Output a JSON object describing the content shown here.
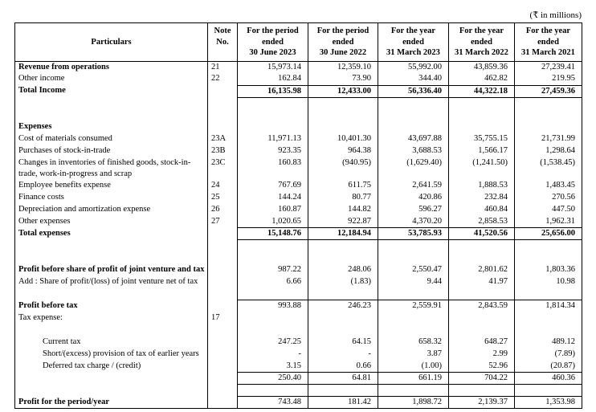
{
  "page": {
    "currency_note": "(₹ in millions)"
  },
  "colors": {
    "text": "#000000",
    "background": "#ffffff",
    "border": "#000000"
  },
  "table": {
    "columns": [
      {
        "id": "particulars",
        "lines": [
          "Particulars"
        ]
      },
      {
        "id": "note",
        "lines": [
          "Note",
          "No."
        ]
      },
      {
        "id": "period-jun-2023",
        "lines": [
          "For the period",
          "ended",
          "30 June 2023"
        ]
      },
      {
        "id": "period-jun-2022",
        "lines": [
          "For the period",
          "ended",
          "30 June 2022"
        ]
      },
      {
        "id": "year-mar-2023",
        "lines": [
          "For the year",
          "ended",
          "31 March 2023"
        ]
      },
      {
        "id": "year-mar-2022",
        "lines": [
          "For the year",
          "ended",
          "31 March 2022"
        ]
      },
      {
        "id": "year-mar-2021",
        "lines": [
          "For the year",
          "ended",
          "31 March 2021"
        ]
      }
    ],
    "rows": [
      {
        "label": "Revenue from operations",
        "note": "21",
        "values": [
          "15,973.14",
          "12,359.10",
          "55,992.00",
          "43,859.36",
          "27,239.41"
        ],
        "bold": true
      },
      {
        "label": "Other income",
        "note": "22",
        "values": [
          "162.84",
          "73.90",
          "344.40",
          "462.82",
          "219.95"
        ]
      },
      {
        "label": "Total Income",
        "values": [
          "16,135.98",
          "12,433.00",
          "56,336.40",
          "44,322.18",
          "27,459.36"
        ],
        "bold": true,
        "vbold": true,
        "bt": true,
        "bb": true
      },
      {
        "blank": true
      },
      {
        "blank": true
      },
      {
        "label": "Expenses",
        "bold": true
      },
      {
        "label": "Cost of materials consumed",
        "note": "23A",
        "values": [
          "11,971.13",
          "10,401.30",
          "43,697.88",
          "35,755.15",
          "21,731.99"
        ]
      },
      {
        "label": "Purchases of stock-in-trade",
        "note": "23B",
        "values": [
          "923.35",
          "964.38",
          "3,688.53",
          "1,566.17",
          "1,298.64"
        ]
      },
      {
        "label": "Changes in inventories of finished goods, stock-in-trade, work-in-progress and scrap",
        "note": "23C",
        "values": [
          "160.83",
          "(940.95)",
          "(1,629.40)",
          "(1,241.50)",
          "(1,538.45)"
        ],
        "wrap": true
      },
      {
        "label": "Employee benefits expense",
        "note": "24",
        "values": [
          "767.69",
          "611.75",
          "2,641.59",
          "1,888.53",
          "1,483.45"
        ]
      },
      {
        "label": "Finance costs",
        "note": "25",
        "values": [
          "144.24",
          "80.77",
          "420.86",
          "232.84",
          "270.56"
        ]
      },
      {
        "label": "Depreciation and amortization expense",
        "note": "26",
        "values": [
          "160.87",
          "144.82",
          "596.27",
          "460.84",
          "447.50"
        ]
      },
      {
        "label": "Other expenses",
        "note": "27",
        "values": [
          "1,020.65",
          "922.87",
          "4,370.20",
          "2,858.53",
          "1,962.31"
        ]
      },
      {
        "label": "Total expenses",
        "values": [
          "15,148.76",
          "12,184.94",
          "53,785.93",
          "41,520.56",
          "25,656.00"
        ],
        "bold": true,
        "vbold": true,
        "bt": true,
        "bb": true
      },
      {
        "blank": true
      },
      {
        "blank": true
      },
      {
        "label": "Profit before share of profit of joint venture and tax",
        "values": [
          "987.22",
          "248.06",
          "2,550.47",
          "2,801.62",
          "1,803.36"
        ],
        "bold": true
      },
      {
        "label": "Add : Share of profit/(loss) of joint venture net of tax",
        "values": [
          "6.66",
          "(1.83)",
          "9.44",
          "41.97",
          "10.98"
        ]
      },
      {
        "blank": true
      },
      {
        "label": "Profit before tax",
        "values": [
          "993.88",
          "246.23",
          "2,559.91",
          "2,843.59",
          "1,814.34"
        ],
        "bold": true,
        "bt": true
      },
      {
        "label": "Tax expense:",
        "note": "17"
      },
      {
        "blank": true
      },
      {
        "label": "Current tax",
        "indent": 1,
        "values": [
          "247.25",
          "64.15",
          "658.32",
          "648.27",
          "489.12"
        ]
      },
      {
        "label": "Short/(excess) provision of tax of earlier years",
        "indent": 1,
        "values": [
          "-",
          "-",
          "3.87",
          "2.99",
          "(7.89)"
        ]
      },
      {
        "label": "Deferred tax charge / (credit)",
        "indent": 1,
        "values": [
          "3.15",
          "0.66",
          "(1.00)",
          "52.96",
          "(20.87)"
        ]
      },
      {
        "label": "",
        "values": [
          "250.40",
          "64.81",
          "661.19",
          "704.22",
          "460.36"
        ],
        "bt": true,
        "bb": true
      },
      {
        "blank": true
      },
      {
        "label": "Profit for the period/year",
        "values": [
          "743.48",
          "181.42",
          "1,898.72",
          "2,139.37",
          "1,353.98"
        ],
        "bold": true,
        "bt": true
      }
    ]
  }
}
